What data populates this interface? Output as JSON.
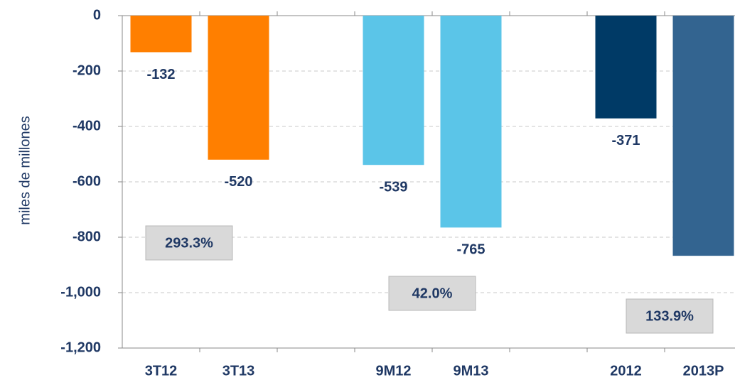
{
  "chart_data": {
    "type": "bar",
    "y_label": "miles de millones",
    "categories": [
      "3T12",
      "3T13",
      null,
      "9M12",
      "9M13",
      null,
      "2012",
      "2013P"
    ],
    "values": [
      -132,
      -520,
      null,
      -539,
      -765,
      null,
      -371,
      -867
    ],
    "value_labels": [
      "-132",
      "-520",
      null,
      "-539",
      "-765",
      null,
      "-371",
      null
    ],
    "colors": [
      "#ff7f00",
      "#ff7f00",
      null,
      "#5bc5e8",
      "#5bc5e8",
      null,
      "#003a66",
      "#336490"
    ],
    "ylim": [
      -1200,
      0
    ],
    "yticks": [
      0,
      -200,
      -400,
      -600,
      -800,
      {
        "value": -1000,
        "label": "-1,000"
      },
      {
        "value": -1200,
        "label": "-1,200"
      }
    ],
    "grid": true,
    "annotations": [
      "293.3%",
      "42.0%",
      "133.9%"
    ]
  }
}
